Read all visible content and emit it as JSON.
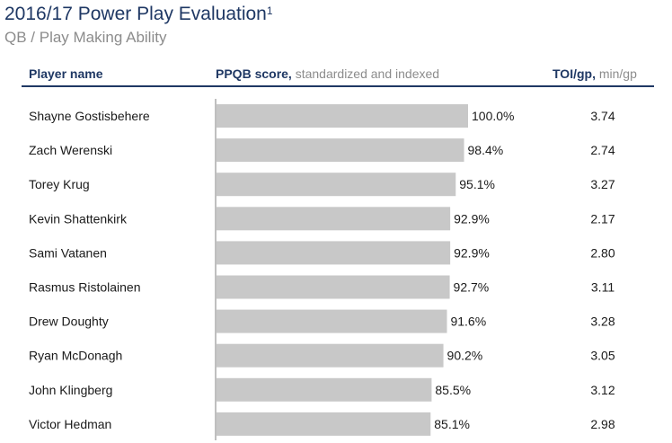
{
  "title": "2016/17 Power Play Evaluation",
  "title_footnote": "1",
  "subtitle": "QB / Play Making Ability",
  "columns": {
    "player_bold": "Player name",
    "score_bold": "PPQB score,",
    "score_light": " standardized and indexed",
    "toi_bold": "TOI/gp,",
    "toi_light": " min/gp"
  },
  "colors": {
    "bar": "#c8c8c8",
    "heading": "#1f3864",
    "axis": "#7f7f7f"
  },
  "chart_data": {
    "type": "bar",
    "orientation": "horizontal",
    "categories": [
      "Shayne Gostisbehere",
      "Zach Werenski",
      "Torey Krug",
      "Kevin Shattenkirk",
      "Sami Vatanen",
      "Rasmus Ristolainen",
      "Drew Doughty",
      "Ryan McDonagh",
      "John Klingberg",
      "Victor Hedman"
    ],
    "values": [
      100.0,
      98.4,
      95.1,
      92.9,
      92.9,
      92.7,
      91.6,
      90.2,
      85.5,
      85.1
    ],
    "value_labels": [
      "100.0%",
      "98.4%",
      "95.1%",
      "92.9%",
      "92.9%",
      "92.7%",
      "91.6%",
      "90.2%",
      "85.5%",
      "85.1%"
    ],
    "toi": [
      "3.74",
      "2.74",
      "3.27",
      "2.17",
      "2.80",
      "3.11",
      "3.28",
      "3.05",
      "3.12",
      "2.98"
    ],
    "xlim": [
      0,
      100
    ]
  }
}
